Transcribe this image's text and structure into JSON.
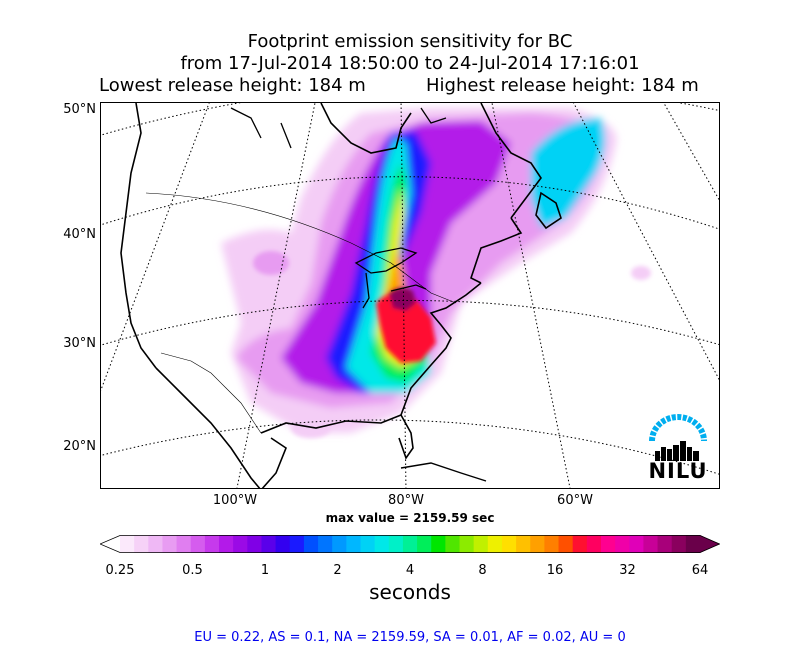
{
  "title": {
    "line1": "Footprint emission sensitivity for BC",
    "line2": "from 17-Jul-2014 18:50:00 to 24-Jul-2014 17:16:01",
    "lowest": "Lowest release height: 184 m",
    "highest": "Highest release height: 184 m"
  },
  "map": {
    "lat_labels": [
      "50°N",
      "40°N",
      "30°N",
      "20°N"
    ],
    "lon_labels": [
      "100°W",
      "80°W",
      "60°W"
    ],
    "logo_text": "NILU",
    "max_value": "max value = 2159.59 sec"
  },
  "colorbar": {
    "ticks": [
      "0.25",
      "0.5",
      "1",
      "2",
      "4",
      "8",
      "16",
      "32",
      "64"
    ],
    "label": "seconds",
    "colors": [
      "#fbe9fb",
      "#f6d2f7",
      "#efb8f5",
      "#e89cf2",
      "#e07ef0",
      "#d55cee",
      "#c63aec",
      "#b31ae9",
      "#9b0ae6",
      "#8000e6",
      "#5a00ea",
      "#3300f0",
      "#1a1aff",
      "#0050ff",
      "#0075ff",
      "#0099ff",
      "#00b7ff",
      "#00d2f5",
      "#00e8e8",
      "#00f0c8",
      "#00f096",
      "#00ee5a",
      "#00e600",
      "#50e600",
      "#8ceb00",
      "#c0f000",
      "#eef000",
      "#ffdf00",
      "#ffc000",
      "#ffa000",
      "#ff7f00",
      "#ff5000",
      "#ff1030",
      "#ff0060",
      "#ff0090",
      "#f000a8",
      "#e000b8",
      "#c80098",
      "#a8007a",
      "#8a005e",
      "#6a004a"
    ]
  },
  "regions": "EU = 0.22,  AS = 0.1,  NA = 2159.59,  SA = 0.01,  AF = 0.02,  AU = 0"
}
